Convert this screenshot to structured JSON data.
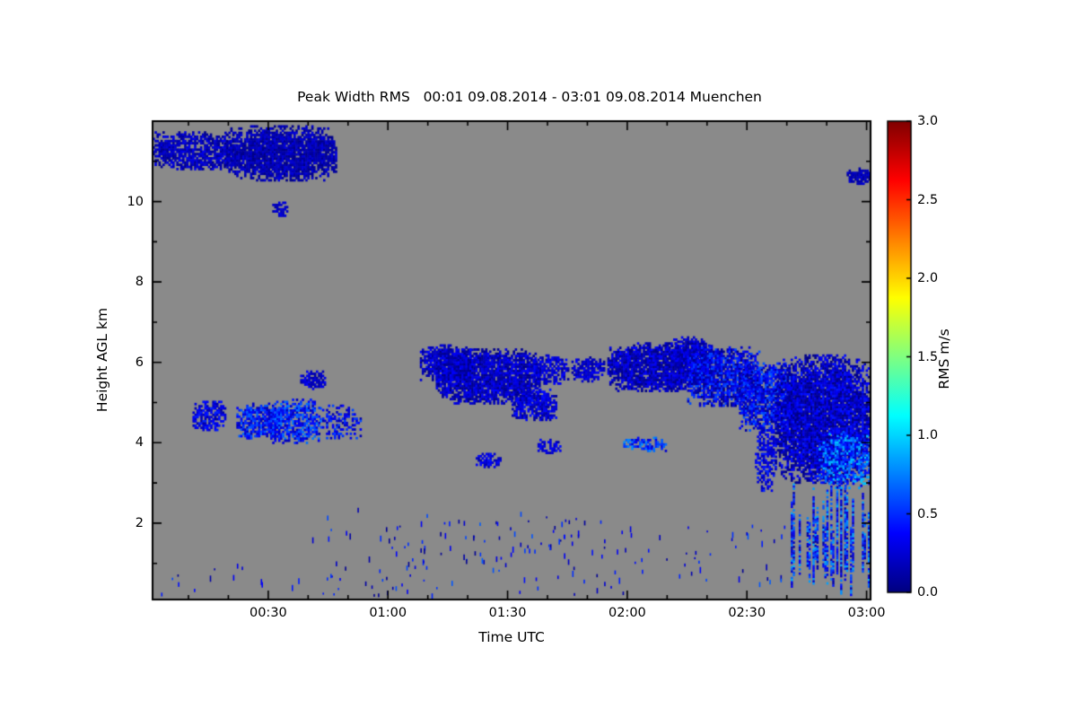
{
  "chart_data": {
    "type": "heatmap",
    "title": "Peak Width RMS   00:01 09.08.2014 - 03:01 09.08.2014 Muenchen",
    "xlabel": "Time UTC",
    "ylabel": "Height AGL km",
    "x_range_minutes": [
      1,
      181
    ],
    "y_range_km": [
      0.1,
      12.0
    ],
    "x_tick_labels": [
      "00:30",
      "01:00",
      "01:30",
      "02:00",
      "02:30",
      "03:00"
    ],
    "x_tick_minutes": [
      30,
      60,
      90,
      120,
      150,
      180
    ],
    "y_tick_values": [
      2,
      4,
      6,
      8,
      10
    ],
    "y_tick_labels": [
      "2",
      "4",
      "6",
      "8",
      "10"
    ],
    "background_color": "#8a8a8a",
    "grid": false,
    "colorbar": {
      "label": "RMS m/s",
      "range": [
        0.0,
        3.0
      ],
      "tick_values": [
        0.0,
        0.5,
        1.0,
        1.5,
        2.0,
        2.5,
        3.0
      ],
      "tick_labels": [
        "0.0",
        "0.5",
        "1.0",
        "1.5",
        "2.0",
        "2.5",
        "3.0"
      ],
      "colormap": "jet",
      "position": "right"
    },
    "regions": [
      {
        "shape": "blob",
        "t": [
          1,
          22
        ],
        "h": [
          10.8,
          11.75
        ],
        "v": 0.15,
        "vj": 0.15,
        "density": 0.78
      },
      {
        "shape": "blob",
        "t": [
          19,
          47
        ],
        "h": [
          10.55,
          11.9
        ],
        "v": 0.12,
        "vj": 0.14,
        "density": 0.92
      },
      {
        "shape": "blob",
        "t": [
          31,
          34.5
        ],
        "h": [
          9.65,
          10.0
        ],
        "v": 0.2,
        "vj": 0.1,
        "density": 0.85
      },
      {
        "shape": "blob",
        "t": [
          175,
          181
        ],
        "h": [
          10.45,
          10.85
        ],
        "v": 0.15,
        "vj": 0.1,
        "density": 0.85
      },
      {
        "shape": "blob",
        "t": [
          68,
          81
        ],
        "h": [
          5.55,
          6.45
        ],
        "v": 0.18,
        "vj": 0.2,
        "density": 0.85
      },
      {
        "shape": "blob",
        "t": [
          72,
          98
        ],
        "h": [
          5.0,
          6.35
        ],
        "v": 0.15,
        "vj": 0.2,
        "density": 0.92
      },
      {
        "shape": "blob",
        "t": [
          91,
          102
        ],
        "h": [
          4.55,
          5.35
        ],
        "v": 0.2,
        "vj": 0.2,
        "density": 0.8
      },
      {
        "shape": "blob",
        "t": [
          96,
          105
        ],
        "h": [
          5.5,
          6.2
        ],
        "v": 0.2,
        "vj": 0.18,
        "density": 0.72
      },
      {
        "shape": "blob",
        "t": [
          106,
          114
        ],
        "h": [
          5.55,
          6.15
        ],
        "v": 0.2,
        "vj": 0.15,
        "density": 0.75
      },
      {
        "shape": "blob",
        "t": [
          115,
          141
        ],
        "h": [
          5.3,
          6.5
        ],
        "v": 0.15,
        "vj": 0.2,
        "density": 0.92
      },
      {
        "shape": "blob",
        "t": [
          131,
          141
        ],
        "h": [
          5.8,
          6.65
        ],
        "v": 0.18,
        "vj": 0.18,
        "density": 0.85
      },
      {
        "shape": "blob",
        "t": [
          135,
          153
        ],
        "h": [
          4.9,
          6.4
        ],
        "v": 0.25,
        "vj": 0.3,
        "density": 0.85
      },
      {
        "shape": "blob",
        "t": [
          148,
          162
        ],
        "h": [
          4.3,
          6.0
        ],
        "v": 0.28,
        "vj": 0.3,
        "density": 0.8
      },
      {
        "shape": "blob",
        "t": [
          152,
          157
        ],
        "h": [
          2.8,
          4.5
        ],
        "v": 0.25,
        "vj": 0.2,
        "density": 0.55
      },
      {
        "shape": "blob",
        "t": [
          157,
          181
        ],
        "h": [
          3.0,
          6.2
        ],
        "v": 0.15,
        "vj": 0.25,
        "density": 0.95
      },
      {
        "shape": "blob",
        "t": [
          168,
          181
        ],
        "h": [
          2.9,
          4.3
        ],
        "v": 0.55,
        "vj": 0.35,
        "density": 0.6
      },
      {
        "shape": "streaks",
        "t": [
          161,
          181
        ],
        "h": [
          0.15,
          3.1
        ],
        "v": 0.5,
        "vj": 0.4,
        "density": 0.6
      },
      {
        "shape": "blob",
        "t": [
          11,
          19
        ],
        "h": [
          4.3,
          5.1
        ],
        "v": 0.25,
        "vj": 0.2,
        "density": 0.7
      },
      {
        "shape": "blob",
        "t": [
          22,
          33
        ],
        "h": [
          4.1,
          5.0
        ],
        "v": 0.35,
        "vj": 0.28,
        "density": 0.75
      },
      {
        "shape": "blob",
        "t": [
          30,
          43
        ],
        "h": [
          4.0,
          5.1
        ],
        "v": 0.38,
        "vj": 0.3,
        "density": 0.75
      },
      {
        "shape": "blob",
        "t": [
          42,
          53
        ],
        "h": [
          4.1,
          4.95
        ],
        "v": 0.3,
        "vj": 0.25,
        "density": 0.42
      },
      {
        "shape": "blob",
        "t": [
          38,
          44
        ],
        "h": [
          5.35,
          5.8
        ],
        "v": 0.2,
        "vj": 0.15,
        "density": 0.8
      },
      {
        "shape": "blob",
        "t": [
          82,
          88
        ],
        "h": [
          3.4,
          3.75
        ],
        "v": 0.25,
        "vj": 0.15,
        "density": 0.8
      },
      {
        "shape": "blob",
        "t": [
          97,
          103
        ],
        "h": [
          3.75,
          4.1
        ],
        "v": 0.25,
        "vj": 0.15,
        "density": 0.72
      },
      {
        "shape": "blob",
        "t": [
          119,
          130
        ],
        "h": [
          3.8,
          4.15
        ],
        "v": 0.45,
        "vj": 0.3,
        "density": 0.7
      },
      {
        "shape": "speckle",
        "t": [
          3,
          60
        ],
        "h": [
          0.2,
          1.0
        ],
        "v": 0.3,
        "vj": 0.3,
        "density": 0.045
      },
      {
        "shape": "speckle",
        "t": [
          40,
          66
        ],
        "h": [
          0.3,
          2.4
        ],
        "v": 0.3,
        "vj": 0.3,
        "density": 0.04
      },
      {
        "shape": "speckle",
        "t": [
          60,
          120
        ],
        "h": [
          0.25,
          2.2
        ],
        "v": 0.35,
        "vj": 0.3,
        "density": 0.06
      },
      {
        "shape": "speckle",
        "t": [
          66,
          110
        ],
        "h": [
          1.2,
          2.3
        ],
        "v": 0.3,
        "vj": 0.3,
        "density": 0.06
      },
      {
        "shape": "speckle",
        "t": [
          120,
          161
        ],
        "h": [
          0.3,
          2.0
        ],
        "v": 0.35,
        "vj": 0.3,
        "density": 0.05
      }
    ]
  }
}
